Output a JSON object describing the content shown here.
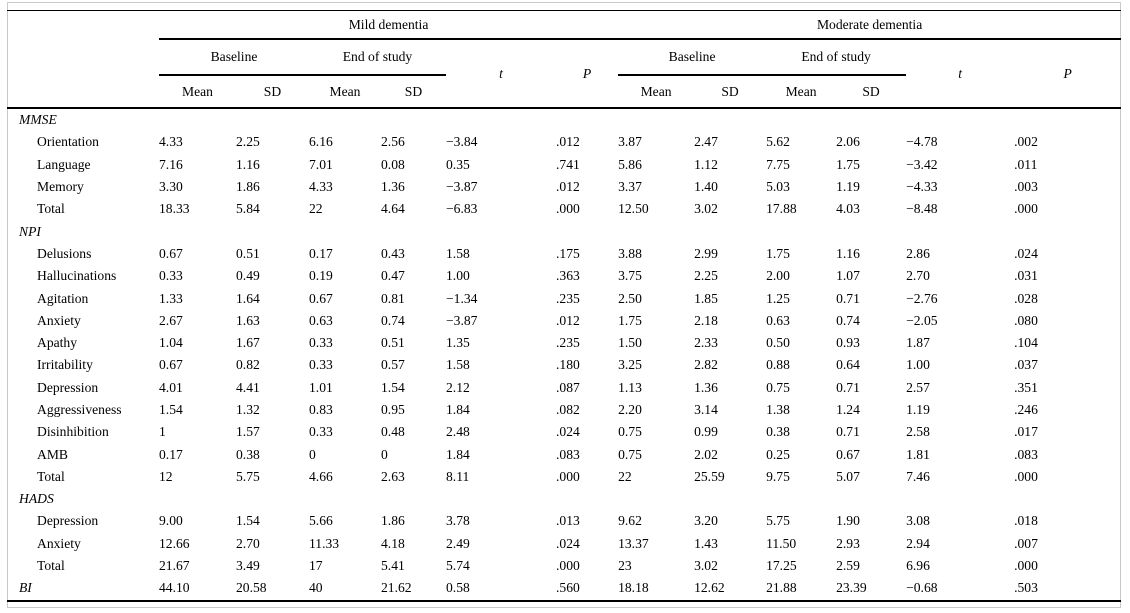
{
  "table": {
    "header": {
      "groups": [
        {
          "label": "Mild dementia"
        },
        {
          "label": "Moderate dementia"
        }
      ],
      "baseline": "Baseline",
      "end_of_study": "End of study",
      "t": "t",
      "p": "P",
      "mean": "Mean",
      "sd": "SD"
    },
    "columns_per_group": [
      "Baseline Mean",
      "Baseline SD",
      "End of study Mean",
      "End of study SD",
      "t",
      "P"
    ],
    "rows": [
      {
        "type": "section",
        "label": "MMSE",
        "values": []
      },
      {
        "type": "item",
        "label": "Orientation",
        "values": [
          "4.33",
          "2.25",
          "6.16",
          "2.56",
          "−3.84",
          ".012",
          "3.87",
          "2.47",
          "5.62",
          "2.06",
          "−4.78",
          ".002"
        ]
      },
      {
        "type": "item",
        "label": "Language",
        "values": [
          "7.16",
          "1.16",
          "7.01",
          "0.08",
          "0.35",
          ".741",
          "5.86",
          "1.12",
          "7.75",
          "1.75",
          "−3.42",
          ".011"
        ]
      },
      {
        "type": "item",
        "label": "Memory",
        "values": [
          "3.30",
          "1.86",
          "4.33",
          "1.36",
          "−3.87",
          ".012",
          "3.37",
          "1.40",
          "5.03",
          "1.19",
          "−4.33",
          ".003"
        ]
      },
      {
        "type": "item",
        "label": "Total",
        "values": [
          "18.33",
          "5.84",
          "22",
          "4.64",
          "−6.83",
          ".000",
          "12.50",
          "3.02",
          "17.88",
          "4.03",
          "−8.48",
          ".000"
        ]
      },
      {
        "type": "section",
        "label": "NPI",
        "values": []
      },
      {
        "type": "item",
        "label": "Delusions",
        "values": [
          "0.67",
          "0.51",
          "0.17",
          "0.43",
          "1.58",
          ".175",
          "3.88",
          "2.99",
          "1.75",
          "1.16",
          "2.86",
          ".024"
        ]
      },
      {
        "type": "item",
        "label": "Hallucinations",
        "values": [
          "0.33",
          "0.49",
          "0.19",
          "0.47",
          "1.00",
          ".363",
          "3.75",
          "2.25",
          "2.00",
          "1.07",
          "2.70",
          ".031"
        ]
      },
      {
        "type": "item",
        "label": "Agitation",
        "values": [
          "1.33",
          "1.64",
          "0.67",
          "0.81",
          "−1.34",
          ".235",
          "2.50",
          "1.85",
          "1.25",
          "0.71",
          "−2.76",
          ".028"
        ]
      },
      {
        "type": "item",
        "label": "Anxiety",
        "values": [
          "2.67",
          "1.63",
          "0.63",
          "0.74",
          "−3.87",
          ".012",
          "1.75",
          "2.18",
          "0.63",
          "0.74",
          "−2.05",
          ".080"
        ]
      },
      {
        "type": "item",
        "label": "Apathy",
        "values": [
          "1.04",
          "1.67",
          "0.33",
          "0.51",
          "1.35",
          ".235",
          "1.50",
          "2.33",
          "0.50",
          "0.93",
          "1.87",
          ".104"
        ]
      },
      {
        "type": "item",
        "label": "Irritability",
        "values": [
          "0.67",
          "0.82",
          "0.33",
          "0.57",
          "1.58",
          ".180",
          "3.25",
          "2.82",
          "0.88",
          "0.64",
          "1.00",
          ".037"
        ]
      },
      {
        "type": "item",
        "label": "Depression",
        "values": [
          "4.01",
          "4.41",
          "1.01",
          "1.54",
          "2.12",
          ".087",
          "1.13",
          "1.36",
          "0.75",
          "0.71",
          "2.57",
          ".351"
        ]
      },
      {
        "type": "item",
        "label": "Aggressiveness",
        "values": [
          "1.54",
          "1.32",
          "0.83",
          "0.95",
          "1.84",
          ".082",
          "2.20",
          "3.14",
          "1.38",
          "1.24",
          "1.19",
          ".246"
        ]
      },
      {
        "type": "item",
        "label": "Disinhibition",
        "values": [
          "1",
          "1.57",
          "0.33",
          "0.48",
          "2.48",
          ".024",
          "0.75",
          "0.99",
          "0.38",
          "0.71",
          "2.58",
          ".017"
        ]
      },
      {
        "type": "item",
        "label": "AMB",
        "values": [
          "0.17",
          "0.38",
          "0",
          "0",
          "1.84",
          ".083",
          "0.75",
          "2.02",
          "0.25",
          "0.67",
          "1.81",
          ".083"
        ]
      },
      {
        "type": "item",
        "label": "Total",
        "values": [
          "12",
          "5.75",
          "4.66",
          "2.63",
          "8.11",
          ".000",
          "22",
          "25.59",
          "9.75",
          "5.07",
          "7.46",
          ".000"
        ]
      },
      {
        "type": "section",
        "label": "HADS",
        "values": []
      },
      {
        "type": "item",
        "label": "Depression",
        "values": [
          "9.00",
          "1.54",
          "5.66",
          "1.86",
          "3.78",
          ".013",
          "9.62",
          "3.20",
          "5.75",
          "1.90",
          "3.08",
          ".018"
        ]
      },
      {
        "type": "item",
        "label": "Anxiety",
        "values": [
          "12.66",
          "2.70",
          "11.33",
          "4.18",
          "2.49",
          ".024",
          "13.37",
          "1.43",
          "11.50",
          "2.93",
          "2.94",
          ".007"
        ]
      },
      {
        "type": "item",
        "label": "Total",
        "values": [
          "21.67",
          "3.49",
          "17",
          "5.41",
          "5.74",
          ".000",
          "23",
          "3.02",
          "17.25",
          "2.59",
          "6.96",
          ".000"
        ]
      },
      {
        "type": "section-data",
        "label": "BI",
        "values": [
          "44.10",
          "20.58",
          "40",
          "21.62",
          "0.58",
          ".560",
          "18.18",
          "12.62",
          "21.88",
          "23.39",
          "−0.68",
          ".503"
        ]
      }
    ]
  }
}
